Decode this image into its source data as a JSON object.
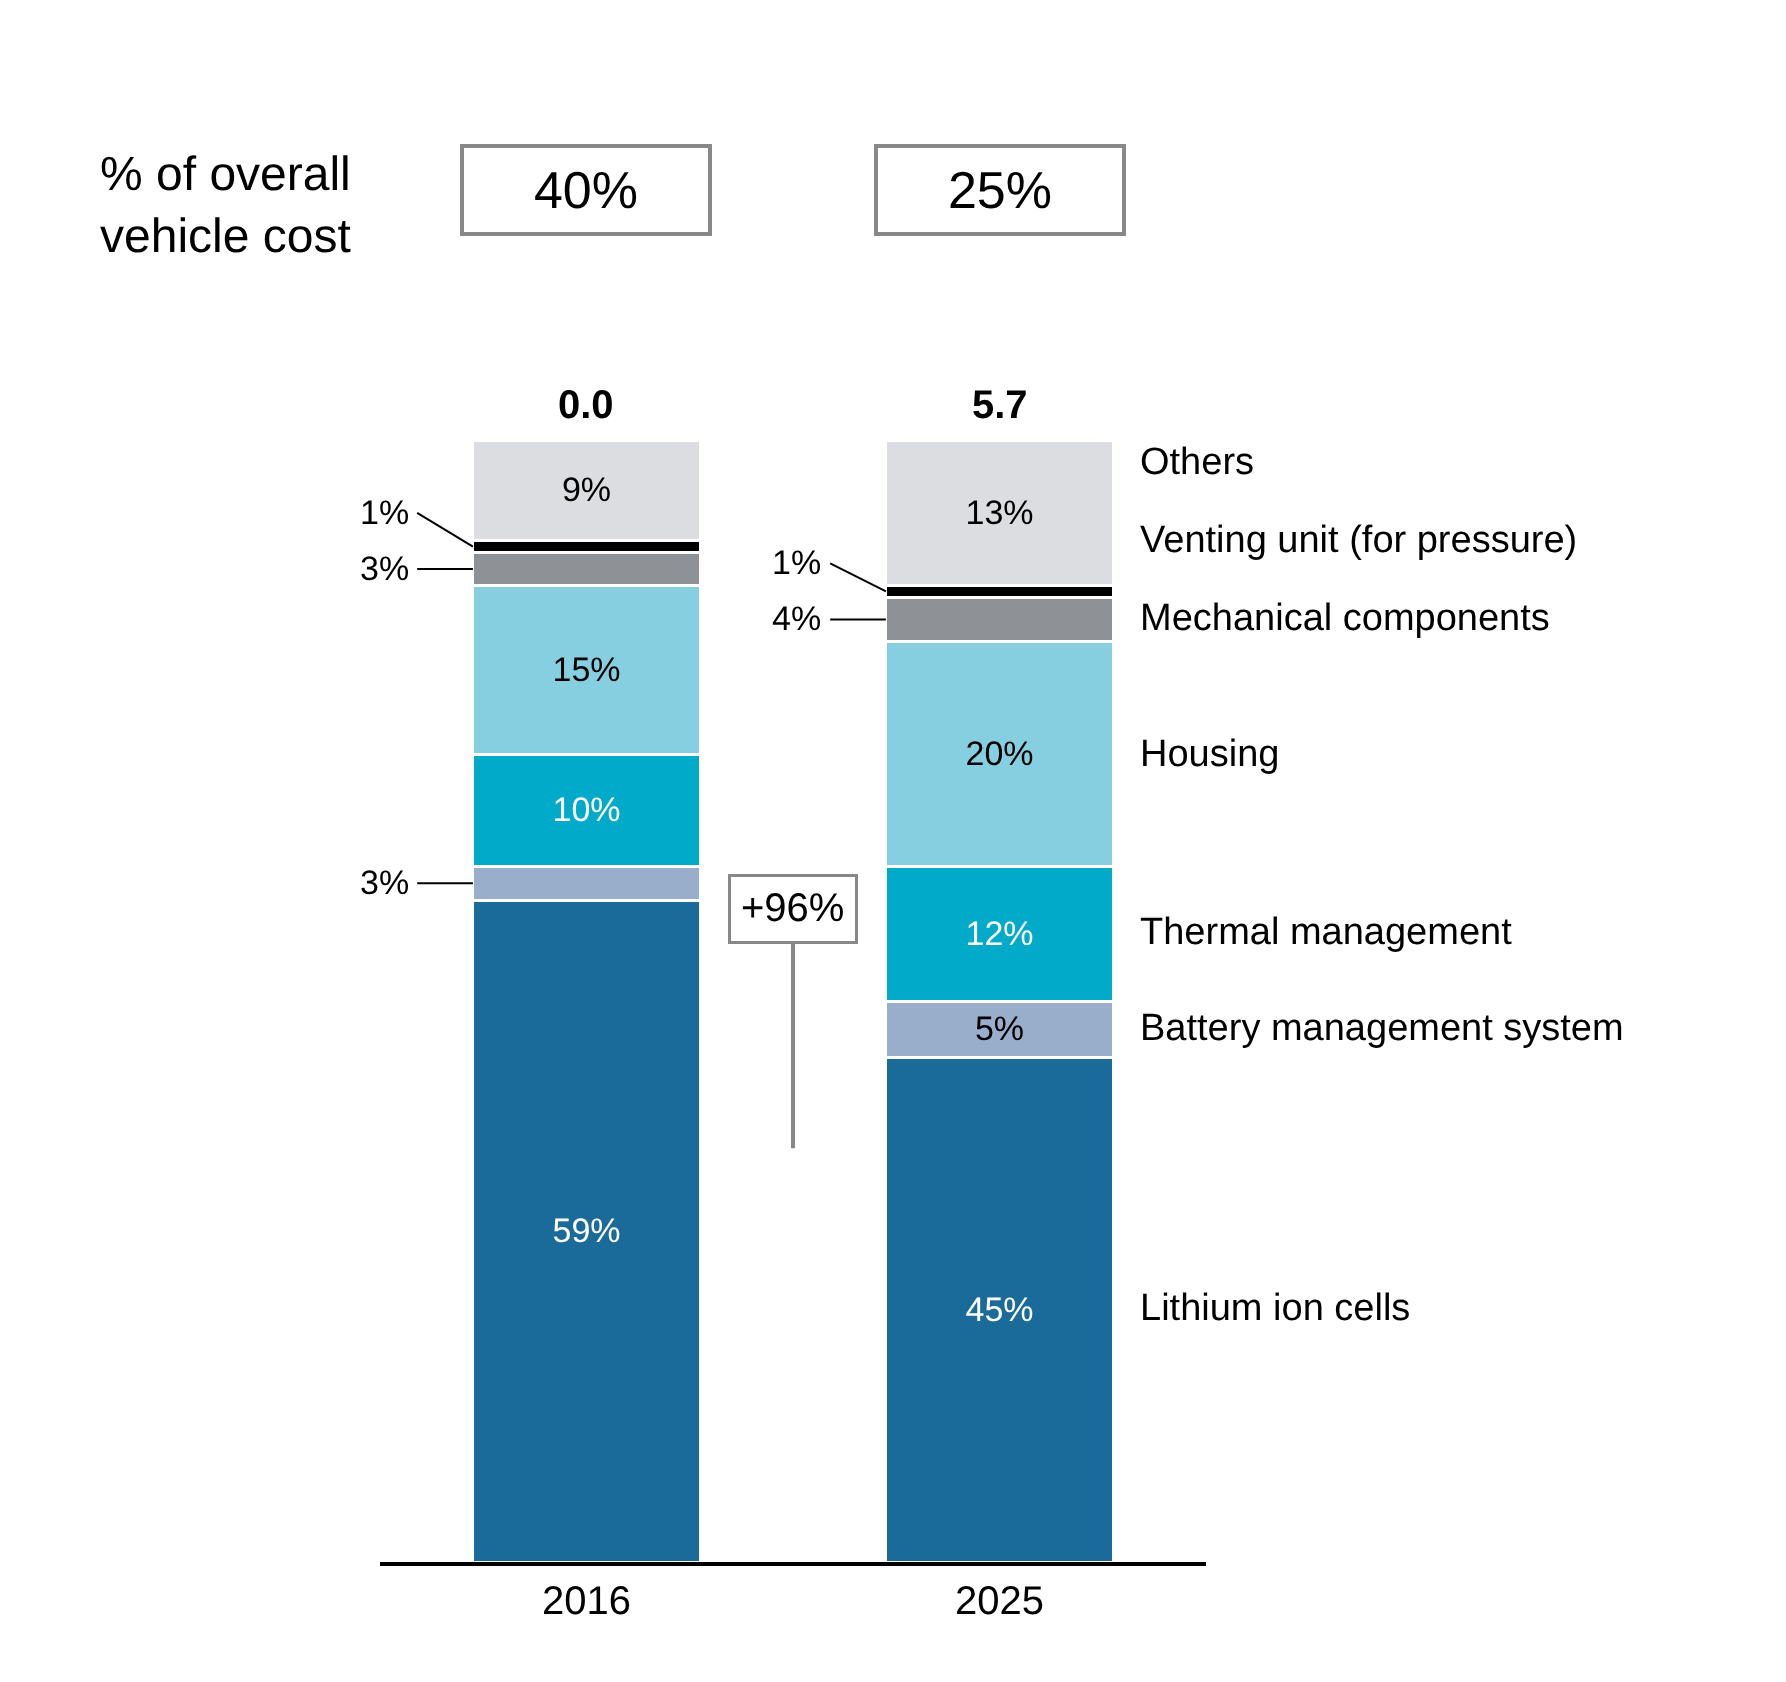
{
  "chart_data": {
    "type": "bar",
    "stacked": true,
    "categories": [
      "2016",
      "2025"
    ],
    "series": [
      {
        "name": "Lithium ion cells",
        "color": "#1a6a9a",
        "values": [
          59,
          45
        ],
        "value_labels": [
          "59%",
          "45%"
        ]
      },
      {
        "name": "Battery management system",
        "color": "#98aecb",
        "values": [
          3,
          5
        ],
        "value_labels": [
          "3%",
          "5%"
        ]
      },
      {
        "name": "Thermal management",
        "color": "#00aac8",
        "values": [
          10,
          12
        ],
        "value_labels": [
          "10%",
          "12%"
        ]
      },
      {
        "name": "Housing",
        "color": "#85cfe0",
        "values": [
          15,
          20
        ],
        "value_labels": [
          "15%",
          "20%"
        ]
      },
      {
        "name": "Mechanical components",
        "color": "#8e9196",
        "values": [
          3,
          4
        ],
        "value_labels": [
          "3%",
          "4%"
        ]
      },
      {
        "name": "Venting unit (for pressure)",
        "color": "#000000",
        "values": [
          1,
          1
        ],
        "value_labels": [
          "1%",
          "1%"
        ]
      },
      {
        "name": "Others",
        "color": "#dcdde0",
        "values": [
          9,
          13
        ],
        "value_labels": [
          "9%",
          "13%"
        ]
      }
    ],
    "annotations": [
      "% of overall vehicle cost",
      "40%",
      "25%",
      "+96%",
      {
        "text": "0.0",
        "x": "2016",
        "y": 100
      },
      {
        "text": "5.7",
        "x": "2025",
        "y": 100
      }
    ],
    "tick_labels": "x",
    "legend": false
  }
}
